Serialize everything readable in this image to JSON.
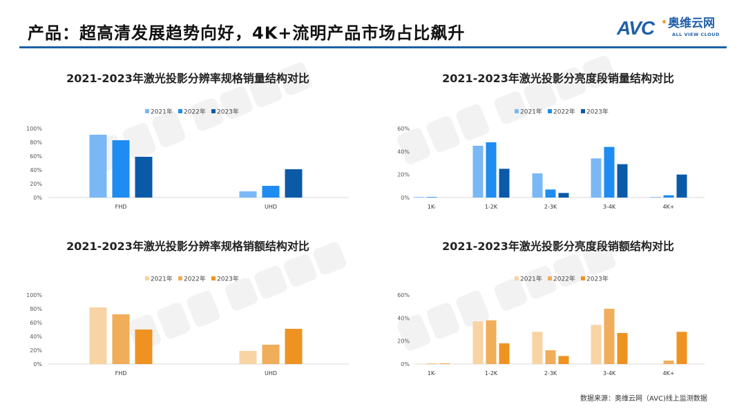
{
  "header": {
    "title": "产品：超高清发展趋势向好，4K+流明产品市场占比飙升",
    "logo": {
      "mark": "AVC",
      "cn": "奥维云网",
      "en": "ALL VIEW CLOUD"
    }
  },
  "footer": {
    "source": "数据来源：奥维云网（AVC)线上监测数据"
  },
  "watermark": {
    "mark": "AVC",
    "cn": "奥维云网",
    "en": "ALL VIEW CLOUD"
  },
  "colors": {
    "blue": [
      "#7ab8f5",
      "#1e8cf0",
      "#0b5aa8"
    ],
    "orange": [
      "#f8d3a3",
      "#f0ad5a",
      "#ee9322"
    ],
    "accent": "#1f5fa8"
  },
  "chart_data": [
    {
      "type": "bar",
      "title": "2021-2023年激光投影分辨率规格销量结构对比",
      "categories": [
        "FHD",
        "UHD"
      ],
      "series": [
        {
          "name": "2021年",
          "values": [
            91,
            9
          ]
        },
        {
          "name": "2022年",
          "values": [
            83,
            17
          ]
        },
        {
          "name": "2023年",
          "values": [
            59,
            41
          ]
        }
      ],
      "ylim": [
        0,
        100
      ],
      "yticks": [
        "0%",
        "20%",
        "40%",
        "60%",
        "80%",
        "100%"
      ],
      "unit": "%",
      "palette": "blue",
      "legend": "top-center",
      "grid": false
    },
    {
      "type": "bar",
      "title": "2021-2023年激光投影分亮度段销量结构对比",
      "categories": [
        "1K-",
        "1-2K",
        "2-3K",
        "3-4K",
        "4K+"
      ],
      "series": [
        {
          "name": "2021年",
          "values": [
            0.5,
            45,
            21,
            34,
            0.5
          ]
        },
        {
          "name": "2022年",
          "values": [
            0.5,
            48,
            7,
            44,
            2
          ]
        },
        {
          "name": "2023年",
          "values": [
            0,
            25,
            4,
            29,
            20
          ]
        }
      ],
      "ylim": [
        0,
        60
      ],
      "yticks": [
        "0%",
        "20%",
        "40%",
        "60%"
      ],
      "unit": "%",
      "palette": "blue",
      "legend": "top-center",
      "grid": false
    },
    {
      "type": "bar",
      "title": "2021-2023年激光投影分辨率规格销额结构对比",
      "categories": [
        "FHD",
        "UHD"
      ],
      "series": [
        {
          "name": "2021年",
          "values": [
            82,
            19
          ]
        },
        {
          "name": "2022年",
          "values": [
            72,
            28
          ]
        },
        {
          "name": "2023年",
          "values": [
            50,
            51
          ]
        }
      ],
      "ylim": [
        0,
        100
      ],
      "yticks": [
        "0%",
        "20%",
        "40%",
        "60%",
        "80%",
        "100%"
      ],
      "unit": "%",
      "palette": "orange",
      "legend": "top-center",
      "grid": false
    },
    {
      "type": "bar",
      "title": "2021-2023年激光投影分亮度段销额结构对比",
      "categories": [
        "1K-",
        "1-2K",
        "2-3K",
        "3-4K",
        "4K+"
      ],
      "series": [
        {
          "name": "2021年",
          "values": [
            0.3,
            37,
            28,
            34,
            0.3
          ]
        },
        {
          "name": "2022年",
          "values": [
            0.5,
            38,
            12,
            48,
            3
          ]
        },
        {
          "name": "2023年",
          "values": [
            0.5,
            18,
            7,
            27,
            28
          ]
        }
      ],
      "ylim": [
        0,
        60
      ],
      "yticks": [
        "0%",
        "20%",
        "40%",
        "60%"
      ],
      "unit": "%",
      "palette": "orange",
      "legend": "top-center",
      "grid": false
    }
  ]
}
